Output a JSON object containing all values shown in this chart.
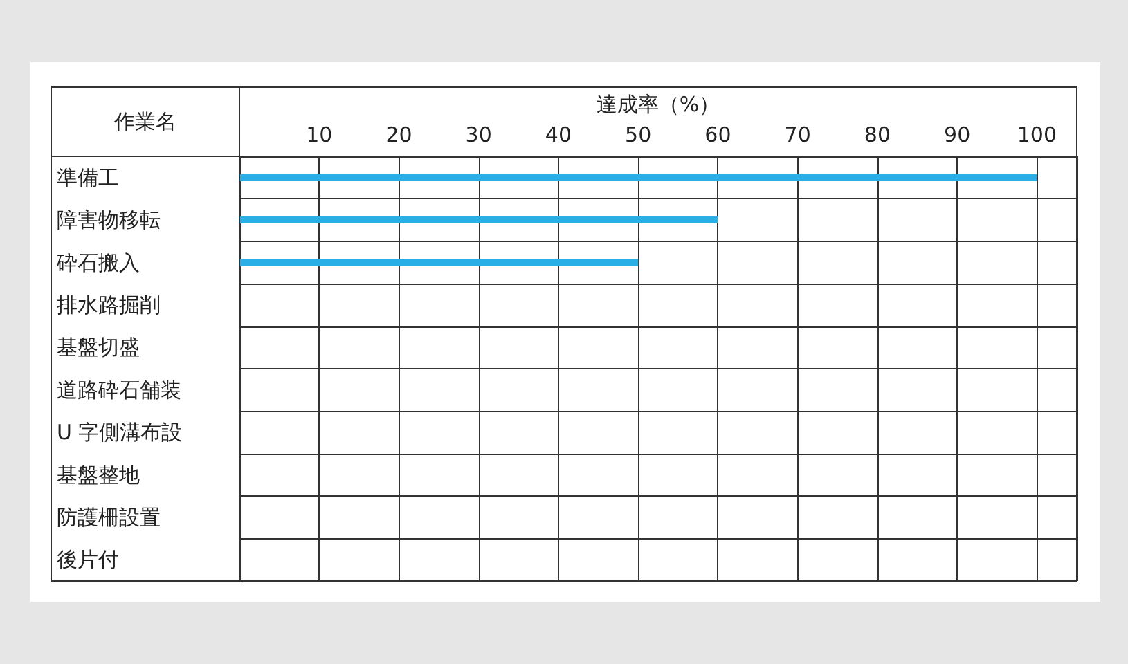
{
  "chart_data": {
    "type": "bar",
    "orientation": "horizontal",
    "xlabel": "達成率（%）",
    "ylabel": "作業名",
    "categories": [
      "準備工",
      "障害物移転",
      "砕石搬入",
      "排水路掘削",
      "基盤切盛",
      "道路砕石舗装",
      "U 字側溝布設",
      "基盤整地",
      "防護柵設置",
      "後片付"
    ],
    "values": [
      100,
      60,
      50,
      null,
      null,
      null,
      null,
      null,
      null,
      null
    ],
    "color": "#2aaee6",
    "xlim": [
      0,
      105
    ],
    "xticks": [
      10,
      20,
      30,
      40,
      50,
      60,
      70,
      80,
      90,
      100
    ],
    "grid": true
  }
}
